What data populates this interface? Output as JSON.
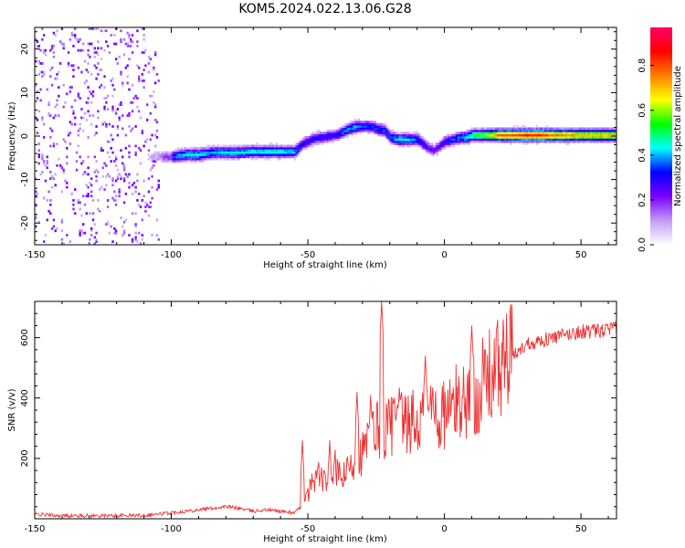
{
  "title": "KOM5.2024.022.13.06.G28",
  "chart_data": [
    {
      "type": "heatmap",
      "xlabel": "Height of straight line (km)",
      "ylabel": "Frequency (Hz)",
      "xlim": [
        -150,
        63
      ],
      "ylim": [
        -25,
        25
      ],
      "xticks": [
        "-150",
        "-100",
        "-50",
        "0",
        "50"
      ],
      "yticks": [
        "-20",
        "-10",
        "0",
        "10",
        "20"
      ],
      "colorbar": {
        "label": "Normalized spectral amplitude",
        "range": [
          0,
          0.97
        ],
        "ticks": [
          "0.0",
          "0.2",
          "0.4",
          "0.6",
          "0.8"
        ],
        "colormap": [
          "#ffffff",
          "#c49bf5",
          "#7b00ff",
          "#0000ff",
          "#00ffff",
          "#00ff00",
          "#ffff00",
          "#ff7f00",
          "#ff0000",
          "#ff0066"
        ]
      },
      "ridge": {
        "x": [
          -100,
          -95,
          -90,
          -85,
          -80,
          -75,
          -70,
          -65,
          -60,
          -55,
          -52,
          -48,
          -45,
          -40,
          -38,
          -35,
          -32,
          -30,
          -27,
          -25,
          -22,
          -20,
          -17,
          -15,
          -12,
          -10,
          -8,
          -6,
          -4,
          -2,
          0,
          3,
          6,
          8,
          10,
          12,
          15,
          18,
          20,
          25,
          30,
          35,
          40,
          45,
          50,
          55,
          60,
          63
        ],
        "y": [
          -5,
          -4.5,
          -4.5,
          -4,
          -4,
          -4,
          -3.8,
          -3.8,
          -3.8,
          -3.8,
          -2,
          -0.8,
          -0.5,
          0,
          0.5,
          1.5,
          2,
          2,
          2,
          1.5,
          1,
          -0.5,
          -1,
          -1,
          -1,
          -1,
          -2,
          -3,
          -3.5,
          -2.5,
          -1.5,
          -1,
          -0.5,
          -0.5,
          0,
          0,
          0,
          0,
          0,
          0,
          0,
          0,
          0,
          0,
          0,
          0,
          0,
          0
        ],
        "amplitude": [
          0.35,
          0.45,
          0.45,
          0.4,
          0.45,
          0.45,
          0.45,
          0.45,
          0.45,
          0.4,
          0.3,
          0.3,
          0.3,
          0.3,
          0.35,
          0.4,
          0.4,
          0.35,
          0.35,
          0.35,
          0.35,
          0.35,
          0.45,
          0.45,
          0.4,
          0.35,
          0.3,
          0.25,
          0.25,
          0.25,
          0.3,
          0.35,
          0.4,
          0.45,
          0.5,
          0.55,
          0.6,
          0.7,
          0.8,
          0.8,
          0.85,
          0.85,
          0.75,
          0.75,
          0.7,
          0.7,
          0.7,
          0.7
        ]
      }
    },
    {
      "type": "line",
      "xlabel": "Height of straight line (km)",
      "ylabel": "SNR (v/v)",
      "xlim": [
        -150,
        63
      ],
      "ylim": [
        0,
        720
      ],
      "xticks": [
        "-150",
        "-100",
        "-50",
        "0",
        "50"
      ],
      "yticks": [
        "200",
        "400",
        "600"
      ],
      "series": [
        {
          "color": "#ee3333",
          "x": [
            -150,
            -140,
            -130,
            -120,
            -110,
            -105,
            -100,
            -95,
            -90,
            -85,
            -80,
            -75,
            -70,
            -65,
            -60,
            -55,
            -52,
            -50,
            -48,
            -46,
            -44,
            -42,
            -40,
            -38,
            -35,
            -32,
            -30,
            -28,
            -26,
            -24,
            -22,
            -20,
            -18,
            -16,
            -14,
            -12,
            -10,
            -8,
            -6,
            -4,
            -2,
            0,
            2,
            4,
            6,
            8,
            10,
            12,
            15,
            18,
            20,
            22,
            25,
            28,
            30,
            35,
            40,
            45,
            50,
            55,
            60,
            63
          ],
          "y": [
            15,
            10,
            10,
            10,
            12,
            15,
            20,
            25,
            30,
            35,
            40,
            35,
            25,
            30,
            25,
            20,
            40,
            80,
            130,
            150,
            120,
            140,
            170,
            130,
            160,
            200,
            220,
            250,
            290,
            300,
            290,
            310,
            330,
            330,
            300,
            330,
            300,
            330,
            350,
            380,
            330,
            350,
            360,
            380,
            390,
            400,
            400,
            420,
            460,
            480,
            500,
            520,
            540,
            560,
            580,
            590,
            600,
            610,
            620,
            620,
            625,
            630
          ]
        }
      ],
      "spikes": [
        {
          "x": -52,
          "y": 260
        },
        {
          "x": -42,
          "y": 260
        },
        {
          "x": -32,
          "y": 420
        },
        {
          "x": -27,
          "y": 410
        },
        {
          "x": -23,
          "y": 720
        },
        {
          "x": -7,
          "y": 540
        },
        {
          "x": 10,
          "y": 640
        }
      ]
    }
  ]
}
